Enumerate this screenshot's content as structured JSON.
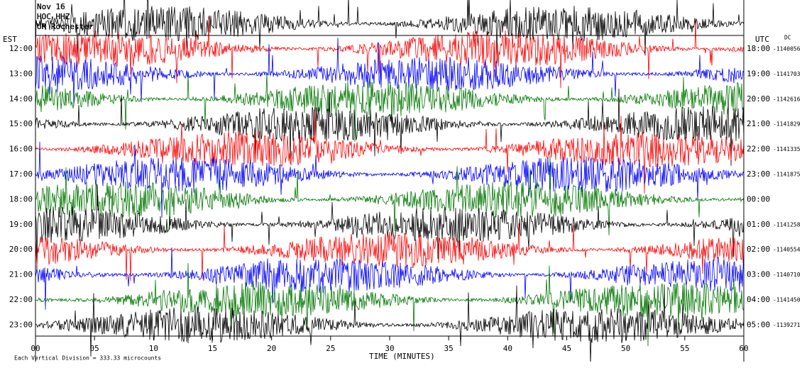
{
  "header": [
    "Nov 16",
    "HOC HHZ",
    "UR Rochester"
  ],
  "left_axis": {
    "label": "EST",
    "hours": [
      "12:00",
      "13:00",
      "14:00",
      "15:00",
      "16:00",
      "17:00",
      "18:00",
      "19:00",
      "20:00",
      "21:00",
      "22:00",
      "23:00"
    ]
  },
  "right_axis": {
    "label": "UTC",
    "dc_label": "DC",
    "hours": [
      "18:00",
      "19:00",
      "20:00",
      "21:00",
      "22:00",
      "23:00",
      "00:00",
      "01:00",
      "02:00",
      "03:00",
      "04:00",
      "05:00"
    ],
    "dc": [
      "-1140056",
      "-1141703",
      "-1142616",
      "-1141829",
      "-1141335",
      "-1141875",
      null,
      "-1141258",
      "-1140554",
      "-1140710",
      "-1141450",
      "-1139271"
    ]
  },
  "x_axis": {
    "label": "TIME (MINUTES)",
    "ticks": [
      "00",
      "05",
      "10",
      "15",
      "20",
      "25",
      "30",
      "35",
      "40",
      "45",
      "50",
      "55",
      "60"
    ]
  },
  "footer": "Each Vertical Division = 333.33 microcounts"
}
